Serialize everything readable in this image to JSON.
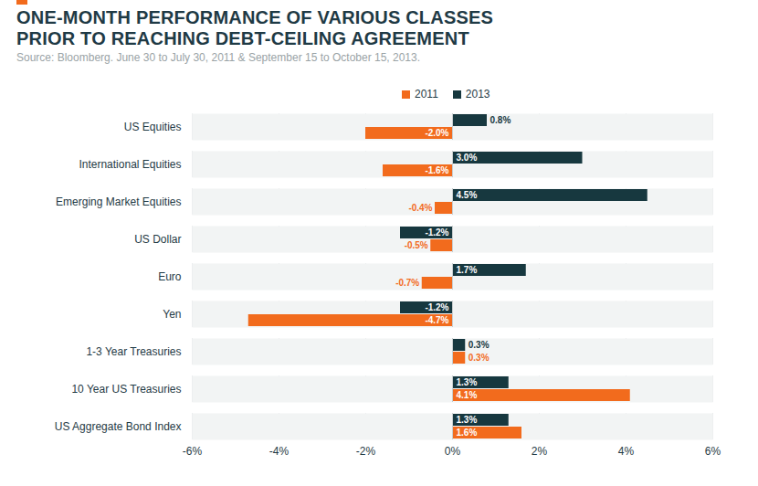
{
  "chart_data": {
    "type": "bar",
    "orientation": "horizontal",
    "title": "ONE-MONTH PERFORMANCE OF VARIOUS CLASSES\nPRIOR TO REACHING DEBT-CEILING AGREEMENT",
    "subtitle": "Source: Bloomberg. June 30 to July 30, 2011 & September 15 to October 15, 2013.",
    "categories": [
      "US Equities",
      "International Equities",
      "Emerging Market Equities",
      "US Dollar",
      "Euro",
      "Yen",
      "1-3 Year Treasuries",
      "10 Year US Treasuries",
      "US Aggregate Bond Index"
    ],
    "series": [
      {
        "name": "2011",
        "color": "#f26b1d",
        "values": [
          -2.0,
          -1.6,
          -0.4,
          -0.5,
          -0.7,
          -4.7,
          0.3,
          4.1,
          1.6
        ],
        "value_labels": [
          "-2.0%",
          "-1.6%",
          "-0.4%",
          "-0.5%",
          "-0.7%",
          "-4.7%",
          "0.3%",
          "4.1%",
          "1.6%"
        ]
      },
      {
        "name": "2013",
        "color": "#17383f",
        "values": [
          0.8,
          3.0,
          4.5,
          -1.2,
          1.7,
          -1.2,
          0.3,
          1.3,
          1.3
        ],
        "value_labels": [
          "0.8%",
          "3.0%",
          "4.5%",
          "-1.2%",
          "1.7%",
          "-1.2%",
          "0.3%",
          "1.3%",
          "1.3%"
        ]
      }
    ],
    "xlim": [
      -6,
      6
    ],
    "xticks": [
      {
        "value": -6,
        "label": "-6%"
      },
      {
        "value": -4,
        "label": "-4%"
      },
      {
        "value": -2,
        "label": "-2%"
      },
      {
        "value": 0,
        "label": "0%"
      },
      {
        "value": 2,
        "label": "2%"
      },
      {
        "value": 4,
        "label": "4%"
      },
      {
        "value": 6,
        "label": "6%"
      }
    ],
    "grid": true,
    "legend": "top",
    "data_labels": true
  }
}
